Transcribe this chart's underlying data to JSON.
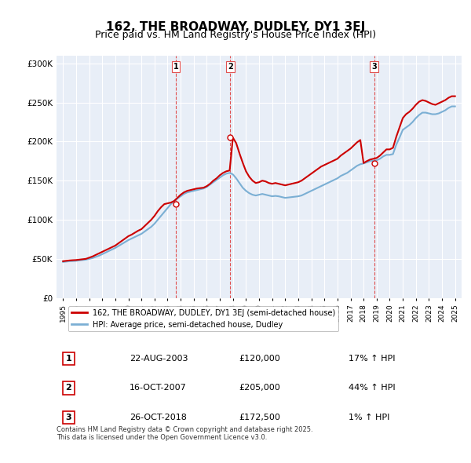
{
  "title": "162, THE BROADWAY, DUDLEY, DY1 3EJ",
  "subtitle": "Price paid vs. HM Land Registry's House Price Index (HPI)",
  "title_fontsize": 11,
  "subtitle_fontsize": 9,
  "background_color": "#ffffff",
  "plot_bg_color": "#e8eef7",
  "ylim": [
    0,
    310000
  ],
  "yticks": [
    0,
    50000,
    100000,
    150000,
    200000,
    250000,
    300000
  ],
  "ytick_labels": [
    "£0",
    "£50K",
    "£100K",
    "£150K",
    "£200K",
    "£250K",
    "£300K"
  ],
  "xlim_start": 1994.5,
  "xlim_end": 2025.5,
  "xticks": [
    1995,
    1996,
    1997,
    1998,
    1999,
    2000,
    2001,
    2002,
    2003,
    2004,
    2005,
    2006,
    2007,
    2008,
    2009,
    2010,
    2011,
    2012,
    2013,
    2014,
    2015,
    2016,
    2017,
    2018,
    2019,
    2020,
    2021,
    2022,
    2023,
    2024,
    2025
  ],
  "sale_dates": [
    2003.64,
    2007.79,
    2018.82
  ],
  "sale_prices": [
    120000,
    205000,
    172500
  ],
  "sale_labels": [
    "1",
    "2",
    "3"
  ],
  "hpi_line_color": "#7bafd4",
  "price_line_color": "#cc0000",
  "vline_color": "#e05050",
  "legend_line1": "162, THE BROADWAY, DUDLEY, DY1 3EJ (semi-detached house)",
  "legend_line2": "HPI: Average price, semi-detached house, Dudley",
  "table_data": [
    {
      "label": "1",
      "date": "22-AUG-2003",
      "price": "£120,000",
      "hpi": "17% ↑ HPI"
    },
    {
      "label": "2",
      "date": "16-OCT-2007",
      "price": "£205,000",
      "hpi": "44% ↑ HPI"
    },
    {
      "label": "3",
      "date": "26-OCT-2018",
      "price": "£172,500",
      "hpi": "1% ↑ HPI"
    }
  ],
  "footer": "Contains HM Land Registry data © Crown copyright and database right 2025.\nThis data is licensed under the Open Government Licence v3.0.",
  "hpi_data_x": [
    1995.0,
    1995.25,
    1995.5,
    1995.75,
    1996.0,
    1996.25,
    1996.5,
    1996.75,
    1997.0,
    1997.25,
    1997.5,
    1997.75,
    1998.0,
    1998.25,
    1998.5,
    1998.75,
    1999.0,
    1999.25,
    1999.5,
    1999.75,
    2000.0,
    2000.25,
    2000.5,
    2000.75,
    2001.0,
    2001.25,
    2001.5,
    2001.75,
    2002.0,
    2002.25,
    2002.5,
    2002.75,
    2003.0,
    2003.25,
    2003.5,
    2003.75,
    2004.0,
    2004.25,
    2004.5,
    2004.75,
    2005.0,
    2005.25,
    2005.5,
    2005.75,
    2006.0,
    2006.25,
    2006.5,
    2006.75,
    2007.0,
    2007.25,
    2007.5,
    2007.75,
    2008.0,
    2008.25,
    2008.5,
    2008.75,
    2009.0,
    2009.25,
    2009.5,
    2009.75,
    2010.0,
    2010.25,
    2010.5,
    2010.75,
    2011.0,
    2011.25,
    2011.5,
    2011.75,
    2012.0,
    2012.25,
    2012.5,
    2012.75,
    2013.0,
    2013.25,
    2013.5,
    2013.75,
    2014.0,
    2014.25,
    2014.5,
    2014.75,
    2015.0,
    2015.25,
    2015.5,
    2015.75,
    2016.0,
    2016.25,
    2016.5,
    2016.75,
    2017.0,
    2017.25,
    2017.5,
    2017.75,
    2018.0,
    2018.25,
    2018.5,
    2018.75,
    2019.0,
    2019.25,
    2019.5,
    2019.75,
    2020.0,
    2020.25,
    2020.5,
    2020.75,
    2021.0,
    2021.25,
    2021.5,
    2021.75,
    2022.0,
    2022.25,
    2022.5,
    2022.75,
    2023.0,
    2023.25,
    2023.5,
    2023.75,
    2024.0,
    2024.25,
    2024.5,
    2024.75,
    2025.0
  ],
  "hpi_data_y": [
    46000,
    46500,
    47000,
    47200,
    47500,
    48000,
    48500,
    49000,
    50000,
    51000,
    52500,
    54000,
    56000,
    58000,
    60000,
    62000,
    64000,
    66500,
    69000,
    71500,
    74000,
    76000,
    78000,
    80000,
    82000,
    85000,
    88000,
    91000,
    95000,
    100000,
    105000,
    110000,
    115000,
    120000,
    124000,
    127000,
    130000,
    133000,
    135000,
    136000,
    137000,
    138000,
    139000,
    140000,
    142000,
    145000,
    148000,
    151000,
    154000,
    157000,
    159000,
    160000,
    158000,
    153000,
    147000,
    141000,
    137000,
    134000,
    132000,
    131000,
    132000,
    133000,
    132000,
    131000,
    130000,
    130500,
    130000,
    129000,
    128000,
    128500,
    129000,
    129500,
    130000,
    131000,
    133000,
    135000,
    137000,
    139000,
    141000,
    143000,
    145000,
    147000,
    149000,
    151000,
    153000,
    156000,
    158000,
    160000,
    163000,
    166000,
    169000,
    171000,
    172000,
    173500,
    175000,
    175500,
    176000,
    178000,
    181000,
    183000,
    183000,
    184000,
    196000,
    205000,
    215000,
    218000,
    221000,
    225000,
    230000,
    234000,
    237000,
    237000,
    236000,
    235000,
    235000,
    236000,
    238000,
    240000,
    243000,
    245000,
    245000
  ],
  "price_data_x": [
    1995.0,
    1995.25,
    1995.5,
    1995.75,
    1996.0,
    1996.25,
    1996.5,
    1996.75,
    1997.0,
    1997.25,
    1997.5,
    1997.75,
    1998.0,
    1998.25,
    1998.5,
    1998.75,
    1999.0,
    1999.25,
    1999.5,
    1999.75,
    2000.0,
    2000.25,
    2000.5,
    2000.75,
    2001.0,
    2001.25,
    2001.5,
    2001.75,
    2002.0,
    2002.25,
    2002.5,
    2002.75,
    2003.0,
    2003.25,
    2003.5,
    2003.75,
    2004.0,
    2004.25,
    2004.5,
    2004.75,
    2005.0,
    2005.25,
    2005.5,
    2005.75,
    2006.0,
    2006.25,
    2006.5,
    2006.75,
    2007.0,
    2007.25,
    2007.5,
    2007.75,
    2008.0,
    2008.25,
    2008.5,
    2008.75,
    2009.0,
    2009.25,
    2009.5,
    2009.75,
    2010.0,
    2010.25,
    2010.5,
    2010.75,
    2011.0,
    2011.25,
    2011.5,
    2011.75,
    2012.0,
    2012.25,
    2012.5,
    2012.75,
    2013.0,
    2013.25,
    2013.5,
    2013.75,
    2014.0,
    2014.25,
    2014.5,
    2014.75,
    2015.0,
    2015.25,
    2015.5,
    2015.75,
    2016.0,
    2016.25,
    2016.5,
    2016.75,
    2017.0,
    2017.25,
    2017.5,
    2017.75,
    2018.0,
    2018.25,
    2018.5,
    2018.75,
    2019.0,
    2019.25,
    2019.5,
    2019.75,
    2020.0,
    2020.25,
    2020.5,
    2020.75,
    2021.0,
    2021.25,
    2021.5,
    2021.75,
    2022.0,
    2022.25,
    2022.5,
    2022.75,
    2023.0,
    2023.25,
    2023.5,
    2023.75,
    2024.0,
    2024.25,
    2024.5,
    2024.75,
    2025.0
  ],
  "price_data_y": [
    47000,
    47500,
    48000,
    48300,
    48500,
    49000,
    49500,
    50000,
    51500,
    53000,
    55000,
    57000,
    59000,
    61000,
    63000,
    65000,
    67000,
    70000,
    73000,
    76000,
    79000,
    81000,
    83500,
    86000,
    88000,
    92000,
    96000,
    100000,
    105000,
    111000,
    116000,
    120000,
    121000,
    122000,
    124000,
    128000,
    132000,
    135000,
    137000,
    138000,
    139000,
    140000,
    140500,
    141000,
    143000,
    146000,
    150000,
    153000,
    157000,
    160000,
    162000,
    163000,
    205000,
    198000,
    185000,
    173000,
    162000,
    155000,
    150000,
    147000,
    148000,
    150000,
    149000,
    147000,
    146000,
    147000,
    146000,
    145000,
    144000,
    145000,
    146000,
    147000,
    148000,
    150000,
    153000,
    156000,
    159000,
    162000,
    165000,
    168000,
    170000,
    172000,
    174000,
    176000,
    178000,
    182000,
    185000,
    188000,
    191000,
    195000,
    199000,
    202000,
    172500,
    175000,
    177000,
    178000,
    179000,
    182000,
    186000,
    190000,
    190000,
    192000,
    206000,
    218000,
    230000,
    235000,
    238000,
    242000,
    247000,
    251000,
    253000,
    252000,
    250000,
    248000,
    247000,
    249000,
    251000,
    253000,
    256000,
    258000,
    258000
  ]
}
